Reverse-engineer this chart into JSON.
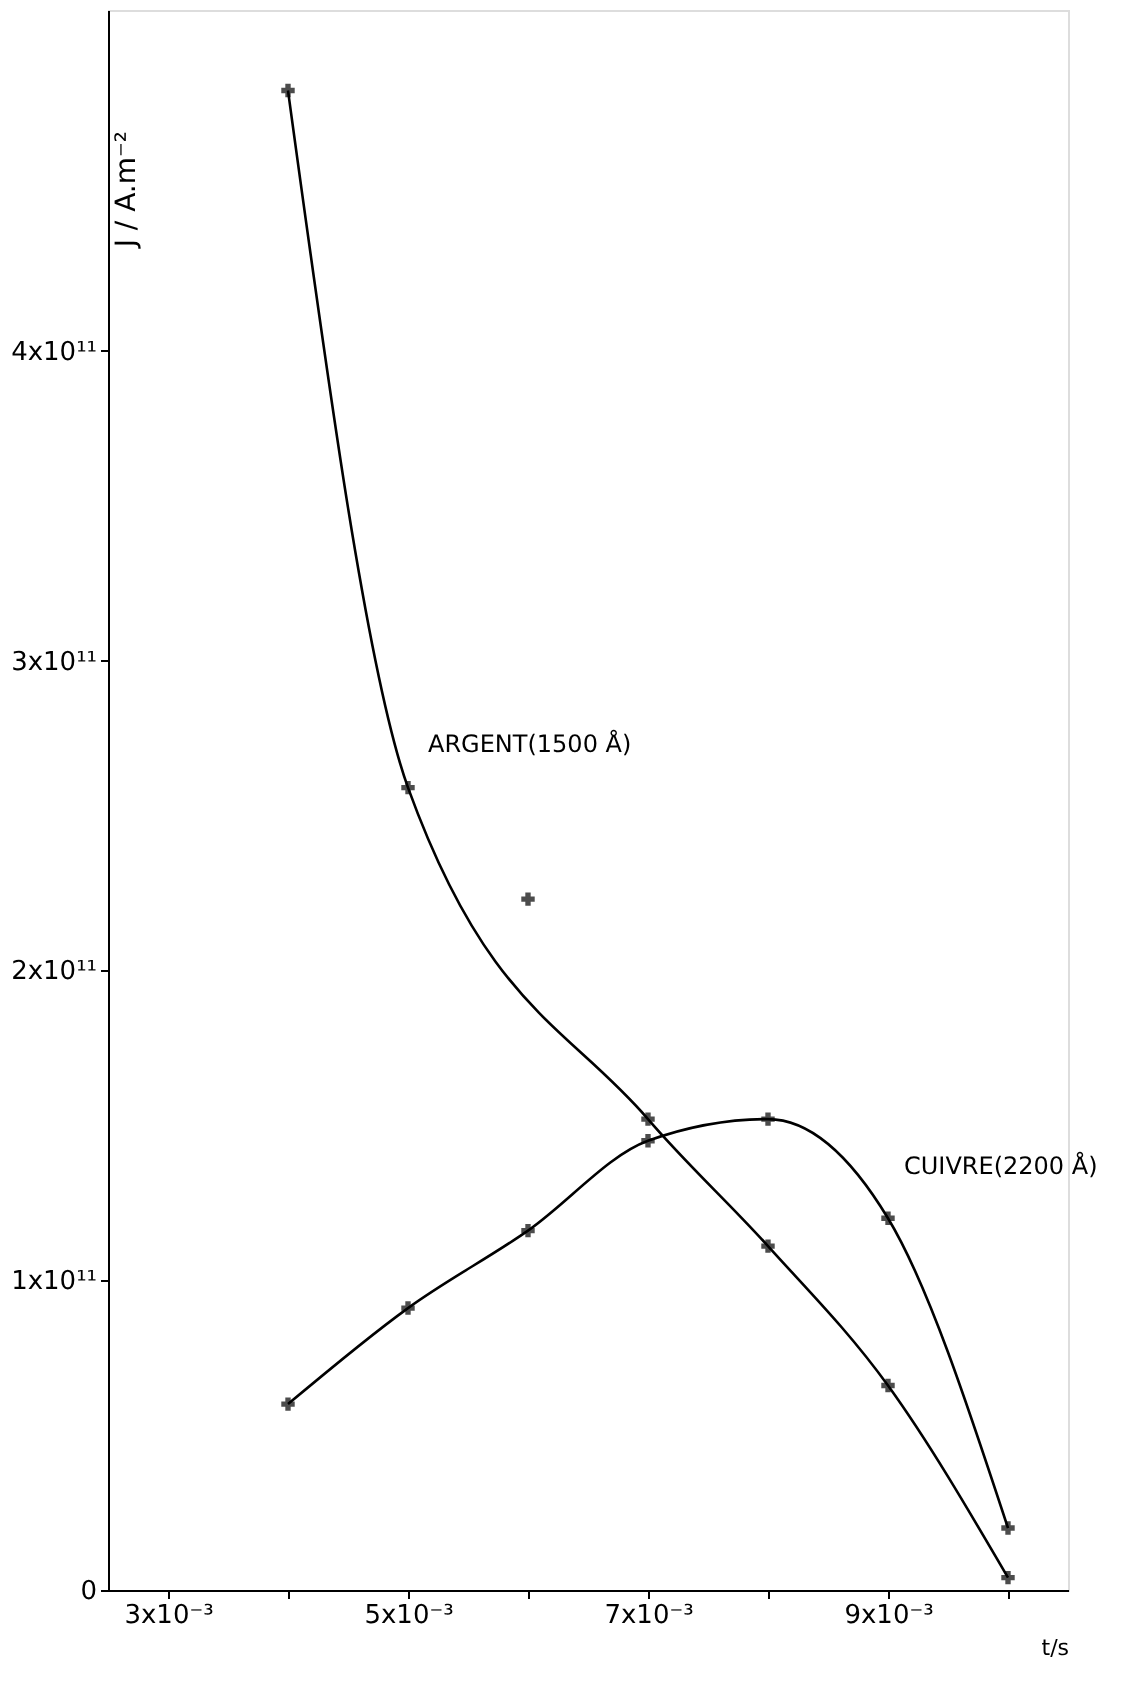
{
  "chart_data": {
    "type": "line",
    "xlabel": "t/s",
    "ylabel": "J / A.m⁻²",
    "xlim": [
      0.0025,
      0.0105
    ],
    "ylim": [
      0,
      510000000000.0
    ],
    "xticks": [
      {
        "value": 0.003,
        "label": "3x10⁻³"
      },
      {
        "value": 0.004,
        "label": null
      },
      {
        "value": 0.005,
        "label": "5x10⁻³"
      },
      {
        "value": 0.006,
        "label": null
      },
      {
        "value": 0.007,
        "label": "7x10⁻³"
      },
      {
        "value": 0.008,
        "label": null
      },
      {
        "value": 0.009,
        "label": "9x10⁻³"
      },
      {
        "value": 0.01,
        "label": null
      }
    ],
    "yticks": [
      0,
      {
        "value": 100000000000.0,
        "label": "1x10¹¹"
      },
      {
        "value": 200000000000.0,
        "label": "2x10¹¹"
      },
      {
        "value": 300000000000.0,
        "label": "3x10¹¹"
      },
      {
        "value": 400000000000.0,
        "label": "4x10¹¹"
      }
    ],
    "grid": false,
    "marker": "cross",
    "line_style": "solid",
    "series": [
      {
        "name": "ARGENT(1500 Å)",
        "color": "#000000",
        "x": [
          0.004,
          0.005,
          0.007,
          0.008,
          0.009,
          0.01
        ],
        "values": [
          484000000000.0,
          259000000000.0,
          152000000000.0,
          111000000000.0,
          66000000000.0,
          4000000000.0
        ]
      },
      {
        "name": "CUIVRE(2200 Å)",
        "color": "#000000",
        "x": [
          0.004,
          0.005,
          0.006,
          0.007,
          0.008,
          0.009,
          0.01
        ],
        "values": [
          60000000000.0,
          91000000000.0,
          116000000000.0,
          145000000000.0,
          152000000000.0,
          120000000000.0,
          20000000000.0
        ]
      },
      {
        "type": "scatter",
        "color": "#000000",
        "x": [
          0.006
        ],
        "values": [
          223000000000.0
        ]
      }
    ]
  }
}
